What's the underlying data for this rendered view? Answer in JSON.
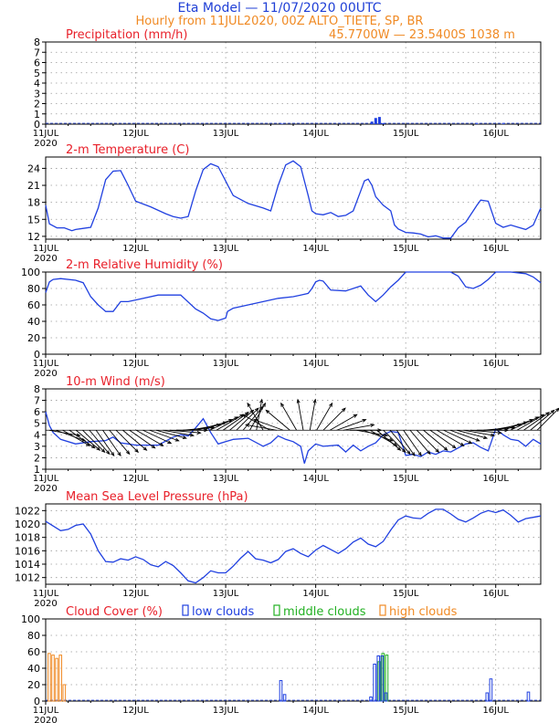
{
  "header": {
    "title": "Eta Model — 11/07/2020 00UTC",
    "subtitle": "Hourly from 11JUL2020, 00Z  ALTO_TIETE, SP, BR",
    "location": "45.7700W — 23.5400S    1038   m"
  },
  "colors": {
    "title": "#1f3fd6",
    "orange": "#f08a24",
    "red": "#e8202a",
    "series": "#2040e0",
    "green": "#22b022",
    "grid": "#9a9a9a",
    "arrow": "#000000"
  },
  "x_axis": {
    "start_hour": 0,
    "end_hour": 132,
    "ticks": [
      {
        "label": "11JUL",
        "hour": 0
      },
      {
        "label": "12JUL",
        "hour": 24
      },
      {
        "label": "13JUL",
        "hour": 48
      },
      {
        "label": "14JUL",
        "hour": 72
      },
      {
        "label": "15JUL",
        "hour": 96
      },
      {
        "label": "16JUL",
        "hour": 120
      }
    ],
    "year": "2020"
  },
  "chart_data": [
    {
      "id": "precip",
      "type": "bar",
      "title": "Precipitation (mm/h)",
      "ylim": [
        0,
        8
      ],
      "yticks": [
        0,
        1,
        2,
        3,
        4,
        5,
        6,
        7,
        8
      ],
      "values": [
        [
          63,
          0.05
        ],
        [
          87,
          0.25
        ],
        [
          88,
          0.6
        ],
        [
          89,
          0.7
        ],
        [
          90,
          0.1
        ],
        [
          115,
          0.05
        ],
        [
          122,
          0.05
        ]
      ]
    },
    {
      "id": "temp",
      "type": "line",
      "title": "2-m Temperature (C)",
      "ylim": [
        11.5,
        26
      ],
      "yticks": [
        12,
        15,
        18,
        21,
        24
      ],
      "x": [
        0,
        1,
        3,
        5,
        7,
        8,
        10,
        12,
        14,
        16,
        18,
        20,
        22,
        24,
        28,
        32,
        34,
        36,
        38,
        40,
        42,
        44,
        46,
        50,
        54,
        58,
        60,
        62,
        64,
        66,
        68,
        70,
        71,
        72,
        74,
        76,
        78,
        80,
        82,
        84,
        85,
        86,
        87,
        88,
        90,
        92,
        93,
        94,
        96,
        98,
        100,
        102,
        104,
        106,
        108,
        110,
        112,
        114,
        115,
        116,
        118,
        120,
        122,
        124,
        126,
        128,
        130,
        132
      ],
      "values": [
        17.5,
        14.2,
        13.5,
        13.5,
        13.0,
        13.2,
        13.4,
        13.6,
        17.0,
        22.0,
        23.5,
        23.6,
        21.0,
        18.2,
        17.2,
        16.0,
        15.5,
        15.2,
        15.5,
        20.0,
        23.8,
        24.8,
        24.3,
        19.2,
        17.8,
        17.0,
        16.5,
        21.0,
        24.6,
        25.3,
        24.3,
        19.2,
        16.5,
        16.0,
        15.8,
        16.2,
        15.5,
        15.7,
        16.5,
        20.0,
        21.8,
        22.1,
        21.0,
        19.0,
        17.5,
        16.5,
        14.0,
        13.3,
        12.7,
        12.6,
        12.4,
        11.9,
        12.1,
        11.7,
        11.7,
        13.5,
        14.5,
        16.5,
        17.5,
        18.4,
        18.2,
        14.3,
        13.6,
        14.0,
        13.6,
        13.2,
        14.0,
        17.0
      ]
    },
    {
      "id": "rh",
      "type": "line",
      "title": "2-m Relative Humidity (%)",
      "ylim": [
        0,
        100
      ],
      "yticks": [
        0,
        20,
        40,
        60,
        80,
        100
      ],
      "x": [
        0,
        1,
        2,
        4,
        8,
        10,
        12,
        14,
        16,
        18,
        20,
        22,
        24,
        30,
        36,
        40,
        42,
        44,
        46,
        48,
        48.5,
        50,
        54,
        58,
        62,
        66,
        68,
        70,
        71,
        72,
        73,
        74,
        76,
        80,
        82,
        84,
        86,
        88,
        90,
        92,
        94,
        96,
        100,
        104,
        108,
        110,
        112,
        114,
        116,
        118,
        120,
        124,
        128,
        130,
        132
      ],
      "values": [
        75,
        88,
        91,
        92,
        90,
        87,
        70,
        60,
        52,
        52,
        64,
        64,
        66,
        72,
        72,
        55,
        50,
        43,
        41,
        44,
        52,
        56,
        60,
        64,
        68,
        70,
        72,
        74,
        80,
        88,
        90,
        89,
        78,
        77,
        80,
        83,
        72,
        64,
        72,
        82,
        90,
        100,
        100,
        100,
        100,
        95,
        82,
        80,
        84,
        91,
        100,
        100,
        98,
        94,
        87
      ]
    },
    {
      "id": "wind",
      "type": "line",
      "title": "10-m Wind (m/s)",
      "ylim": [
        1,
        8
      ],
      "yticks": [
        1,
        2,
        3,
        4,
        5,
        6,
        7,
        8
      ],
      "x": [
        0,
        1,
        2,
        4,
        8,
        12,
        16,
        18,
        20,
        22,
        24,
        30,
        34,
        36,
        38,
        40,
        42,
        44,
        46,
        48,
        50,
        54,
        58,
        60,
        62,
        64,
        66,
        68,
        69,
        70,
        72,
        74,
        78,
        80,
        82,
        84,
        86,
        88,
        90,
        92,
        94,
        96,
        98,
        100,
        102,
        104,
        106,
        108,
        112,
        114,
        116,
        118,
        120,
        122,
        124,
        126,
        128,
        130,
        132
      ],
      "values": [
        6.0,
        4.8,
        4.2,
        3.6,
        3.2,
        3.4,
        3.5,
        3.8,
        3.3,
        3.2,
        3.1,
        3.1,
        3.8,
        4.0,
        3.9,
        4.6,
        5.4,
        4.2,
        3.2,
        3.4,
        3.6,
        3.7,
        3.0,
        3.3,
        3.9,
        3.6,
        3.4,
        3.0,
        1.5,
        2.6,
        3.2,
        3.0,
        3.1,
        2.5,
        3.1,
        2.6,
        3.0,
        3.3,
        4.0,
        4.3,
        4.2,
        2.2,
        2.3,
        2.1,
        2.5,
        2.3,
        2.6,
        2.5,
        3.2,
        3.3,
        2.9,
        2.6,
        4.5,
        4.0,
        3.6,
        3.5,
        3.0,
        3.6,
        3.2
      ],
      "vectors": {
        "base_value": 4.4,
        "angles_deg": [
          -10,
          -20,
          -30,
          -35,
          -40,
          -45,
          -50,
          -55,
          -55,
          -50,
          -45,
          -40,
          -35,
          -30,
          -25,
          -20,
          -15,
          -10,
          -5,
          0,
          5,
          10,
          15,
          20,
          25,
          30,
          35,
          40,
          45,
          50,
          60,
          80,
          120,
          150,
          170,
          160,
          140,
          120,
          100,
          80,
          60,
          45,
          30,
          20,
          10,
          0,
          -10,
          -20,
          -30,
          -40,
          -45,
          -50,
          -55,
          -55,
          -50,
          -45,
          -40,
          -35,
          -30,
          -25,
          -20,
          -15,
          -10,
          -5,
          0,
          5,
          10,
          15,
          20,
          25,
          30,
          35,
          40,
          45
        ]
      }
    },
    {
      "id": "pressure",
      "type": "line",
      "title": "Mean Sea Level Pressure (hPa)",
      "ylim": [
        1011,
        1023
      ],
      "yticks": [
        1012,
        1014,
        1016,
        1018,
        1020,
        1022
      ],
      "x": [
        0,
        2,
        4,
        6,
        8,
        10,
        12,
        14,
        16,
        18,
        20,
        22,
        24,
        26,
        28,
        30,
        32,
        34,
        36,
        38,
        40,
        42,
        44,
        46,
        48,
        50,
        52,
        54,
        56,
        58,
        60,
        62,
        64,
        66,
        68,
        70,
        72,
        74,
        76,
        78,
        80,
        82,
        84,
        86,
        88,
        90,
        92,
        94,
        96,
        98,
        100,
        102,
        104,
        106,
        108,
        110,
        112,
        114,
        116,
        118,
        120,
        122,
        124,
        126,
        128,
        130,
        132
      ],
      "values": [
        1020.4,
        1019.7,
        1019.0,
        1019.2,
        1019.8,
        1020.0,
        1018.5,
        1016.0,
        1014.4,
        1014.3,
        1014.8,
        1014.6,
        1015.1,
        1014.7,
        1013.9,
        1013.6,
        1014.4,
        1013.8,
        1012.7,
        1011.5,
        1011.2,
        1012.0,
        1013.0,
        1012.7,
        1012.7,
        1013.7,
        1014.9,
        1015.9,
        1014.8,
        1014.6,
        1014.2,
        1014.7,
        1015.9,
        1016.3,
        1015.6,
        1015.1,
        1016.1,
        1016.8,
        1016.2,
        1015.6,
        1016.3,
        1017.3,
        1017.9,
        1017.0,
        1016.6,
        1017.4,
        1019.1,
        1020.6,
        1021.2,
        1020.9,
        1020.8,
        1021.6,
        1022.2,
        1022.2,
        1021.5,
        1020.7,
        1020.3,
        1020.9,
        1021.6,
        1022.0,
        1021.7,
        1022.1,
        1021.3,
        1020.3,
        1020.8,
        1021.0,
        1021.2
      ]
    },
    {
      "id": "cloud",
      "type": "bar",
      "title": "Cloud Cover (%)",
      "legend": [
        "low clouds",
        "middle clouds",
        "high clouds"
      ],
      "ylim": [
        0,
        100
      ],
      "yticks": [
        0,
        20,
        40,
        60,
        80,
        100
      ],
      "low": [
        [
          63,
          25
        ],
        [
          64,
          8
        ],
        [
          87,
          5
        ],
        [
          88,
          45
        ],
        [
          89,
          55
        ],
        [
          90,
          55
        ],
        [
          91,
          10
        ],
        [
          118,
          10
        ],
        [
          119,
          27
        ],
        [
          129,
          11
        ]
      ],
      "middle": [
        [
          89,
          48
        ],
        [
          90,
          58
        ],
        [
          91,
          56
        ]
      ],
      "high": [
        [
          1,
          58
        ],
        [
          2,
          56
        ],
        [
          3,
          52
        ],
        [
          4,
          56
        ],
        [
          5,
          20
        ]
      ]
    }
  ]
}
